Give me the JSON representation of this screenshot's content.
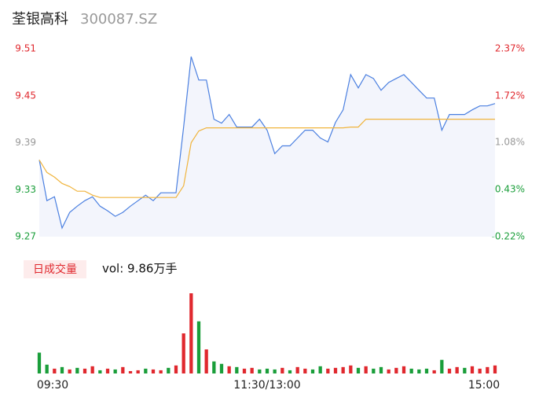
{
  "chart_data": {
    "type": "line",
    "title": "荃银高科",
    "subtitle": "300087.SZ",
    "x": [
      "09:30",
      "09:34",
      "09:38",
      "09:42",
      "09:46",
      "09:50",
      "09:54",
      "09:58",
      "10:02",
      "10:06",
      "10:10",
      "10:14",
      "10:18",
      "10:22",
      "10:26",
      "10:30",
      "10:34",
      "10:38",
      "10:42",
      "10:46",
      "10:50",
      "10:54",
      "10:58",
      "11:02",
      "11:06",
      "11:10",
      "11:14",
      "11:18",
      "11:22",
      "11:26",
      "13:00",
      "13:04",
      "13:08",
      "13:12",
      "13:16",
      "13:20",
      "13:24",
      "13:28",
      "13:32",
      "13:36",
      "13:40",
      "13:44",
      "13:48",
      "13:52",
      "13:56",
      "14:00",
      "14:04",
      "14:08",
      "14:12",
      "14:16",
      "14:20",
      "14:24",
      "14:28",
      "14:32",
      "14:36",
      "14:40",
      "14:44",
      "14:48",
      "14:52",
      "14:56",
      "15:00"
    ],
    "xtick_labels": [
      "09:30",
      "11:30/13:00",
      "15:00"
    ],
    "series": [
      {
        "color": "#4a7fe0",
        "values": [
          9.368,
          9.316,
          9.321,
          9.281,
          9.301,
          9.309,
          9.316,
          9.321,
          9.309,
          9.303,
          9.296,
          9.301,
          9.309,
          9.316,
          9.323,
          9.316,
          9.326,
          9.326,
          9.326,
          9.41,
          9.5,
          9.47,
          9.47,
          9.42,
          9.415,
          9.426,
          9.41,
          9.41,
          9.41,
          9.42,
          9.406,
          9.376,
          9.386,
          9.386,
          9.396,
          9.406,
          9.406,
          9.396,
          9.391,
          9.416,
          9.432,
          9.477,
          9.46,
          9.477,
          9.472,
          9.457,
          9.467,
          9.472,
          9.477,
          9.467,
          9.457,
          9.447,
          9.447,
          9.406,
          9.426,
          9.426,
          9.426,
          9.432,
          9.437,
          9.437,
          9.44
        ]
      },
      {
        "color": "#f0b43c",
        "values": [
          9.368,
          9.352,
          9.346,
          9.338,
          9.334,
          9.328,
          9.328,
          9.323,
          9.32,
          9.32,
          9.32,
          9.32,
          9.32,
          9.32,
          9.32,
          9.32,
          9.32,
          9.32,
          9.32,
          9.335,
          9.39,
          9.405,
          9.409,
          9.409,
          9.409,
          9.409,
          9.409,
          9.409,
          9.409,
          9.409,
          9.409,
          9.409,
          9.409,
          9.409,
          9.409,
          9.409,
          9.409,
          9.409,
          9.409,
          9.409,
          9.409,
          9.41,
          9.41,
          9.42,
          9.42,
          9.42,
          9.42,
          9.42,
          9.42,
          9.42,
          9.42,
          9.42,
          9.42,
          9.42,
          9.42,
          9.42,
          9.42,
          9.42,
          9.42,
          9.42,
          9.42
        ]
      }
    ],
    "ylim": [
      9.27,
      9.51
    ],
    "yticks": [
      9.51,
      9.45,
      9.39,
      9.33,
      9.27
    ],
    "y2lim": [
      -0.22,
      2.37
    ],
    "y2ticks": [
      {
        "value": 2.37,
        "label": "2.37%"
      },
      {
        "value": 1.72,
        "label": "1.72%"
      },
      {
        "value": 1.08,
        "label": "1.08%"
      },
      {
        "value": 0.43,
        "label": "0.43%"
      },
      {
        "value": -0.22,
        "label": "-0.22%"
      }
    ],
    "tick_colors": [
      "#e0282e",
      "#e0282e",
      "#999999",
      "#1a9e3a",
      "#1a9e3a"
    ],
    "volume_label": "日成交量",
    "volume_text": "vol: 9.86万手",
    "volume_ylim": [
      0,
      1000
    ],
    "volume": [
      260,
      110,
      60,
      80,
      50,
      70,
      60,
      90,
      40,
      60,
      50,
      80,
      30,
      40,
      60,
      50,
      40,
      70,
      100,
      500,
      1000,
      650,
      300,
      150,
      120,
      90,
      80,
      60,
      70,
      50,
      60,
      50,
      70,
      40,
      80,
      60,
      50,
      90,
      60,
      70,
      80,
      100,
      70,
      90,
      60,
      80,
      50,
      70,
      90,
      60,
      50,
      60,
      40,
      170,
      60,
      80,
      70,
      90,
      60,
      80,
      100
    ],
    "volume_colors": [
      "#1a9e3a",
      "#1a9e3a",
      "#e0282e",
      "#1a9e3a",
      "#e0282e",
      "#1a9e3a",
      "#e0282e",
      "#e0282e",
      "#1a9e3a",
      "#e0282e",
      "#1a9e3a",
      "#e0282e",
      "#e0282e",
      "#e0282e",
      "#1a9e3a",
      "#e0282e",
      "#e0282e",
      "#1a9e3a",
      "#e0282e",
      "#e0282e",
      "#e0282e",
      "#1a9e3a",
      "#e0282e",
      "#1a9e3a",
      "#1a9e3a",
      "#e0282e",
      "#1a9e3a",
      "#e0282e",
      "#e0282e",
      "#1a9e3a",
      "#1a9e3a",
      "#1a9e3a",
      "#e0282e",
      "#1a9e3a",
      "#e0282e",
      "#e0282e",
      "#1a9e3a",
      "#1a9e3a",
      "#e0282e",
      "#e0282e",
      "#e0282e",
      "#e0282e",
      "#1a9e3a",
      "#e0282e",
      "#1a9e3a",
      "#1a9e3a",
      "#e0282e",
      "#e0282e",
      "#e0282e",
      "#1a9e3a",
      "#1a9e3a",
      "#1a9e3a",
      "#e0282e",
      "#1a9e3a",
      "#e0282e",
      "#e0282e",
      "#1a9e3a",
      "#e0282e",
      "#e0282e",
      "#e0282e",
      "#e0282e"
    ]
  }
}
